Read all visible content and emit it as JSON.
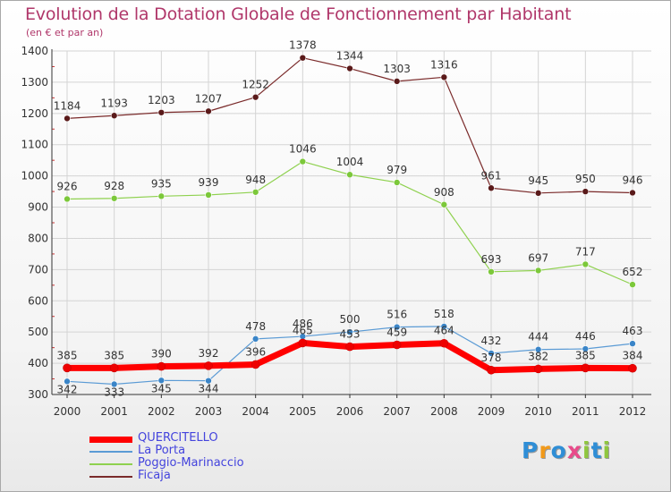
{
  "title": "Evolution de la Dotation Globale de Fonctionnement par Habitant",
  "subtitle": "(en € et par an)",
  "logo": "Proxiti",
  "colors": {
    "title": "#b0376a",
    "grid": "#d4d4d4",
    "axis": "#333333",
    "tick_marks": "#cc3333"
  },
  "legend": [
    {
      "name": "QUERCITELLO",
      "color": "#ff0000",
      "text_color": "#4444dd"
    },
    {
      "name": "La Porta",
      "color": "#5b9bd5",
      "text_color": "#4444dd"
    },
    {
      "name": "Poggio-Marinaccio",
      "color": "#8fd14f",
      "text_color": "#4444dd"
    },
    {
      "name": "Ficaja",
      "color": "#7a2a2a",
      "text_color": "#4444dd"
    }
  ],
  "chart_data": {
    "type": "line",
    "title": "Evolution de la Dotation Globale de Fonctionnement par Habitant",
    "subtitle": "(en € et par an)",
    "xlabel": "",
    "ylabel": "",
    "x": [
      "2000",
      "2001",
      "2002",
      "2003",
      "2004",
      "2005",
      "2006",
      "2007",
      "2008",
      "2009",
      "2010",
      "2011",
      "2012"
    ],
    "ylim": [
      300,
      1400
    ],
    "yticks": [
      300,
      400,
      500,
      600,
      700,
      800,
      900,
      1000,
      1100,
      1200,
      1300,
      1400
    ],
    "grid": true,
    "legend_position": "bottom-left",
    "series": [
      {
        "name": "Ficaja",
        "color": "#7a2a2a",
        "marker": "#5a1a1a",
        "width": 1.2,
        "values": [
          1184,
          1193,
          1203,
          1207,
          1252,
          1378,
          1344,
          1303,
          1316,
          961,
          945,
          950,
          946
        ]
      },
      {
        "name": "Poggio-Marinaccio",
        "color": "#8fd14f",
        "marker": "#7cc83a",
        "width": 1.2,
        "values": [
          926,
          928,
          935,
          939,
          948,
          1046,
          1004,
          979,
          908,
          693,
          697,
          717,
          652
        ]
      },
      {
        "name": "La Porta",
        "color": "#5b9bd5",
        "marker": "#3a85c8",
        "width": 1.2,
        "values": [
          342,
          333,
          345,
          344,
          478,
          486,
          500,
          516,
          518,
          432,
          444,
          446,
          463
        ]
      },
      {
        "name": "QUERCITELLO",
        "color": "#ff0000",
        "marker": "#ee0000",
        "width": 7,
        "values": [
          385,
          385,
          390,
          392,
          396,
          465,
          453,
          459,
          464,
          378,
          382,
          385,
          384
        ]
      }
    ],
    "point_labels": [
      {
        "series": "Ficaja",
        "labels": [
          "1184",
          "1193",
          "1203",
          "1207",
          "1252",
          "1378",
          "1344",
          "1303",
          "1316",
          "961",
          "945",
          "950",
          "946"
        ]
      },
      {
        "series": "Poggio-Marinaccio",
        "labels": [
          "926",
          "928",
          "935",
          "939",
          "948",
          "1046",
          "1004",
          "979",
          "908",
          "693",
          "697",
          "717",
          "652"
        ]
      },
      {
        "series": "La Porta",
        "labels": [
          "342",
          "333",
          "345",
          "344",
          "478",
          "486",
          "500",
          "516",
          "518",
          "432",
          "444",
          "446",
          "463"
        ]
      },
      {
        "series": "QUERCITELLO",
        "labels": [
          "385",
          "385",
          "390",
          "392",
          "396",
          "465",
          "453",
          "459",
          "464",
          "378",
          "382",
          "385",
          "384"
        ]
      }
    ]
  }
}
